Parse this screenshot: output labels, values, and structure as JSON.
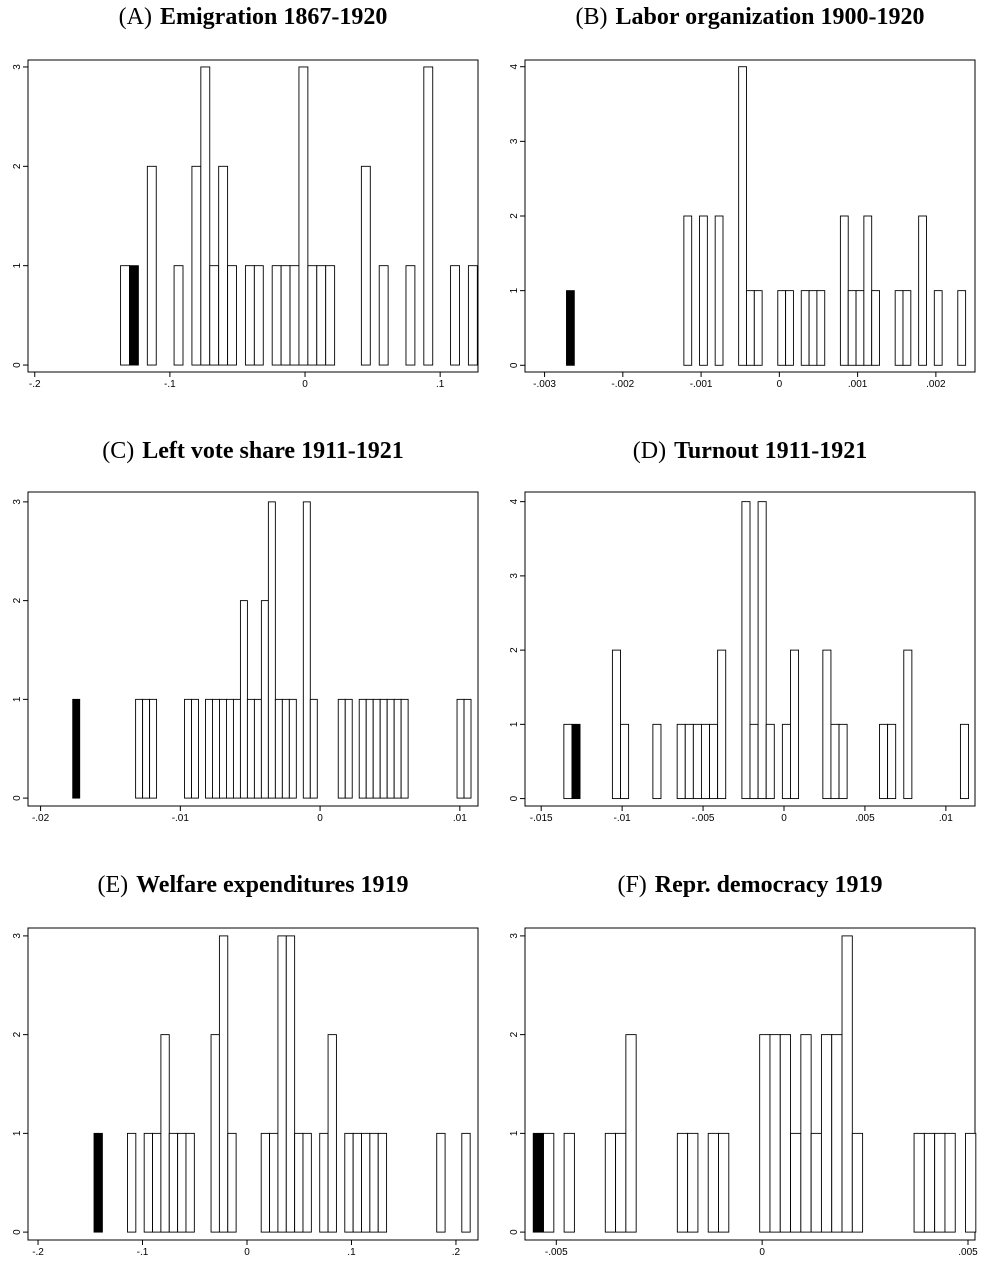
{
  "chart_data": [
    {
      "type": "histogram",
      "panel": "(A)",
      "title": "Emigration 1867-1920",
      "bins": [
        -0.1365,
        -0.1299,
        -0.1233,
        -0.1167,
        -0.1101,
        -0.1035,
        -0.0969,
        -0.0903,
        -0.0837,
        -0.0771,
        -0.0705,
        -0.0639,
        -0.0573,
        -0.0507,
        -0.0441,
        -0.0375,
        -0.0309,
        -0.0243,
        -0.0177,
        -0.0111,
        -0.0045,
        0.0021,
        0.0087,
        0.0153,
        0.0219,
        0.0285,
        0.0351,
        0.0417,
        0.0483,
        0.0549,
        0.0615,
        0.0681,
        0.0747,
        0.0813,
        0.0879,
        0.0945,
        0.1011,
        0.1077,
        0.1143,
        0.1209,
        0.1275
      ],
      "values": [
        1,
        1,
        0,
        2,
        0,
        0,
        1,
        0,
        2,
        3,
        1,
        2,
        1,
        0,
        1,
        1,
        0,
        1,
        1,
        1,
        3,
        1,
        1,
        1,
        0,
        0,
        0,
        2,
        0,
        1,
        0,
        0,
        1,
        0,
        3,
        0,
        0,
        1,
        0,
        1
      ],
      "color": "#ffffff",
      "edgecolor": "#000000",
      "highlight_bar": 1,
      "highlight_color": "#000000",
      "xlim": [
        -0.205,
        0.128
      ],
      "ylim": [
        -0.07,
        3.07
      ],
      "xticks": [
        {
          "value": -0.2,
          "label": "-.2"
        },
        {
          "value": -0.1,
          "label": "-.1"
        },
        0,
        {
          "value": 0.1,
          "label": ".1"
        }
      ],
      "yticks": [
        0,
        1,
        2,
        3
      ]
    },
    {
      "type": "histogram",
      "panel": "(B)",
      "title": "Labor organization 1900-1920",
      "bins": [
        -0.00272,
        -0.00262,
        -0.00252,
        -0.00242,
        -0.00232,
        -0.00222,
        -0.00212,
        -0.00202,
        -0.00192,
        -0.00182,
        -0.00172,
        -0.00162,
        -0.00152,
        -0.00142,
        -0.00132,
        -0.00122,
        -0.00112,
        -0.00102,
        -0.00092,
        -0.00082,
        -0.00072,
        -0.00062,
        -0.00052,
        -0.00042,
        -0.00032,
        -0.00022,
        -0.00012,
        -2e-05,
        8e-05,
        0.00018,
        0.00028,
        0.00038,
        0.00048,
        0.00058,
        0.00068,
        0.00078,
        0.00088,
        0.00098,
        0.00108,
        0.00118,
        0.00128,
        0.00138,
        0.00148,
        0.00158,
        0.00168,
        0.00178,
        0.00188,
        0.00198,
        0.00208,
        0.00218,
        0.00228,
        0.00238
      ],
      "values": [
        1,
        0,
        0,
        0,
        0,
        0,
        0,
        0,
        0,
        0,
        0,
        0,
        0,
        0,
        0,
        2,
        0,
        2,
        0,
        2,
        0,
        0,
        4,
        1,
        1,
        0,
        0,
        1,
        1,
        0,
        1,
        1,
        1,
        0,
        0,
        2,
        1,
        1,
        2,
        1,
        0,
        0,
        1,
        1,
        0,
        2,
        0,
        1,
        0,
        0,
        1
      ],
      "color": "#ffffff",
      "edgecolor": "#000000",
      "highlight_bar": 0,
      "highlight_color": "#000000",
      "xlim": [
        -0.00325,
        0.0025
      ],
      "ylim": [
        -0.09,
        4.09
      ],
      "xticks": [
        {
          "value": -0.003,
          "label": "-.003"
        },
        {
          "value": -0.002,
          "label": "-.002"
        },
        {
          "value": -0.001,
          "label": "-.001"
        },
        0,
        {
          "value": 0.001,
          "label": ".001"
        },
        {
          "value": 0.002,
          "label": ".002"
        }
      ],
      "yticks": [
        0,
        1,
        2,
        3,
        4
      ]
    },
    {
      "type": "histogram",
      "panel": "(C)",
      "title": "Left vote share 1911-1921",
      "bins": [
        -0.0177,
        -0.0172,
        -0.0167,
        -0.0162,
        -0.0157,
        -0.0152,
        -0.0147,
        -0.0142,
        -0.0137,
        -0.0132,
        -0.0127,
        -0.0122,
        -0.0117,
        -0.0112,
        -0.0107,
        -0.0102,
        -0.0097,
        -0.0092,
        -0.0087,
        -0.0082,
        -0.0077,
        -0.0072,
        -0.0067,
        -0.0062,
        -0.0057,
        -0.0052,
        -0.0047,
        -0.0042,
        -0.0037,
        -0.0032,
        -0.0027,
        -0.0022,
        -0.0017,
        -0.0012,
        -0.0007,
        -0.0002,
        0.0003,
        0.0008,
        0.0013,
        0.0018,
        0.0023,
        0.0028,
        0.0033,
        0.0038,
        0.0043,
        0.0048,
        0.0053,
        0.0058,
        0.0063,
        0.0068,
        0.0073,
        0.0078,
        0.0083,
        0.0088,
        0.0093,
        0.0098,
        0.0103,
        0.0108
      ],
      "values": [
        1,
        0,
        0,
        0,
        0,
        0,
        0,
        0,
        0,
        1,
        1,
        1,
        0,
        0,
        0,
        0,
        1,
        1,
        0,
        1,
        1,
        1,
        1,
        1,
        2,
        1,
        1,
        2,
        3,
        1,
        1,
        1,
        0,
        3,
        1,
        0,
        0,
        0,
        1,
        1,
        0,
        1,
        1,
        1,
        1,
        1,
        1,
        1,
        0,
        0,
        0,
        0,
        0,
        0,
        0,
        1,
        1
      ],
      "color": "#ffffff",
      "edgecolor": "#000000",
      "highlight_bar": 0,
      "highlight_color": "#000000",
      "xlim": [
        -0.0209,
        0.0113
      ],
      "ylim": [
        -0.08,
        3.1
      ],
      "xticks": [
        {
          "value": -0.02,
          "label": "-.02"
        },
        {
          "value": -0.01,
          "label": "-.01"
        },
        0,
        {
          "value": 0.01,
          "label": ".01"
        }
      ],
      "yticks": [
        0,
        1,
        2,
        3
      ]
    },
    {
      "type": "histogram",
      "panel": "(D)",
      "title": "Turnout 1911-1921",
      "bins": [
        -0.0136,
        -0.0131,
        -0.0126,
        -0.0121,
        -0.0116,
        -0.0111,
        -0.0106,
        -0.0101,
        -0.0096,
        -0.0091,
        -0.0086,
        -0.0081,
        -0.0076,
        -0.0071,
        -0.0066,
        -0.0061,
        -0.0056,
        -0.0051,
        -0.0046,
        -0.0041,
        -0.0036,
        -0.0031,
        -0.0026,
        -0.0021,
        -0.0016,
        -0.0011,
        -0.0006,
        -0.0001,
        0.0004,
        0.0009,
        0.0014,
        0.0019,
        0.0024,
        0.0029,
        0.0034,
        0.0039,
        0.0044,
        0.0049,
        0.0054,
        0.0059,
        0.0064,
        0.0069,
        0.0074,
        0.0079,
        0.0084,
        0.0089,
        0.0094,
        0.0099,
        0.0104,
        0.0109,
        0.0114
      ],
      "values": [
        1,
        1,
        0,
        0,
        0,
        0,
        2,
        1,
        0,
        0,
        0,
        1,
        0,
        0,
        1,
        1,
        1,
        1,
        1,
        2,
        0,
        0,
        4,
        1,
        4,
        1,
        0,
        1,
        2,
        0,
        0,
        0,
        2,
        1,
        1,
        0,
        0,
        0,
        0,
        1,
        1,
        0,
        2,
        0,
        0,
        0,
        0,
        0,
        0,
        1
      ],
      "color": "#ffffff",
      "edgecolor": "#000000",
      "highlight_bar": 1,
      "highlight_color": "#000000",
      "xlim": [
        -0.016,
        0.0118
      ],
      "ylim": [
        -0.1,
        4.13
      ],
      "xticks": [
        {
          "value": -0.015,
          "label": "-.015"
        },
        {
          "value": -0.01,
          "label": "-.01"
        },
        {
          "value": -0.005,
          "label": "-.005"
        },
        0,
        {
          "value": 0.005,
          "label": ".005"
        },
        {
          "value": 0.01,
          "label": ".01"
        }
      ],
      "yticks": [
        0,
        1,
        2,
        3,
        4
      ]
    },
    {
      "type": "histogram",
      "panel": "(E)",
      "title": "Welfare expenditures 1919",
      "bins": [
        -0.1464,
        -0.1384,
        -0.1304,
        -0.1224,
        -0.1144,
        -0.1064,
        -0.0984,
        -0.0904,
        -0.0824,
        -0.0744,
        -0.0664,
        -0.0584,
        -0.0504,
        -0.0424,
        -0.0344,
        -0.0264,
        -0.0184,
        -0.0104,
        -0.0024,
        0.0056,
        0.0136,
        0.0216,
        0.0296,
        0.0376,
        0.0456,
        0.0536,
        0.0616,
        0.0696,
        0.0776,
        0.0856,
        0.0936,
        0.1016,
        0.1096,
        0.1176,
        0.1256,
        0.1336,
        0.1416,
        0.1496,
        0.1576,
        0.1656,
        0.1736,
        0.1816,
        0.1896,
        0.1976,
        0.2056,
        0.2136
      ],
      "values": [
        1,
        0,
        0,
        0,
        1,
        0,
        1,
        1,
        2,
        1,
        1,
        1,
        0,
        0,
        2,
        3,
        1,
        0,
        0,
        0,
        1,
        1,
        3,
        3,
        1,
        1,
        0,
        1,
        2,
        0,
        1,
        1,
        1,
        1,
        1,
        0,
        0,
        0,
        0,
        0,
        0,
        1,
        0,
        0,
        1
      ],
      "color": "#ffffff",
      "edgecolor": "#000000",
      "highlight_bar": 0,
      "highlight_color": "#000000",
      "xlim": [
        -0.2096,
        0.2211
      ],
      "ylim": [
        -0.08,
        3.08
      ],
      "xticks": [
        {
          "value": -0.2,
          "label": "-.2"
        },
        {
          "value": -0.1,
          "label": "-.1"
        },
        0,
        {
          "value": 0.1,
          "label": ".1"
        },
        {
          "value": 0.2,
          "label": ".2"
        }
      ],
      "yticks": [
        0,
        1,
        2,
        3
      ]
    },
    {
      "type": "histogram",
      "panel": "(F)",
      "title": "Repr. democracy 1919",
      "bins": [
        -0.00556,
        -0.00531,
        -0.00506,
        -0.00481,
        -0.00456,
        -0.00431,
        -0.00406,
        -0.00381,
        -0.00356,
        -0.00331,
        -0.00306,
        -0.00281,
        -0.00256,
        -0.00231,
        -0.00206,
        -0.00181,
        -0.00156,
        -0.00131,
        -0.00106,
        -0.00081,
        -0.00056,
        -0.00031,
        -6e-05,
        0.00019,
        0.00044,
        0.00069,
        0.00094,
        0.00119,
        0.00144,
        0.00169,
        0.00194,
        0.00219,
        0.00244,
        0.00269,
        0.00294,
        0.00319,
        0.00344,
        0.00369,
        0.00394,
        0.00419,
        0.00444,
        0.00469,
        0.00494,
        0.00519
      ],
      "values": [
        1,
        1,
        0,
        1,
        0,
        0,
        0,
        1,
        1,
        2,
        0,
        0,
        0,
        0,
        1,
        1,
        0,
        1,
        1,
        0,
        0,
        0,
        2,
        2,
        2,
        1,
        2,
        1,
        2,
        2,
        3,
        1,
        0,
        0,
        0,
        0,
        0,
        1,
        1,
        1,
        1,
        0,
        1
      ],
      "color": "#ffffff",
      "edgecolor": "#000000",
      "highlight_bar": 0,
      "highlight_color": "#000000",
      "xlim": [
        -0.00576,
        0.00517
      ],
      "ylim": [
        -0.08,
        3.08
      ],
      "xticks": [
        {
          "value": -0.005,
          "label": "-.005"
        },
        0,
        {
          "value": 0.005,
          "label": ".005"
        }
      ],
      "yticks": [
        0,
        1,
        2,
        3
      ]
    }
  ]
}
